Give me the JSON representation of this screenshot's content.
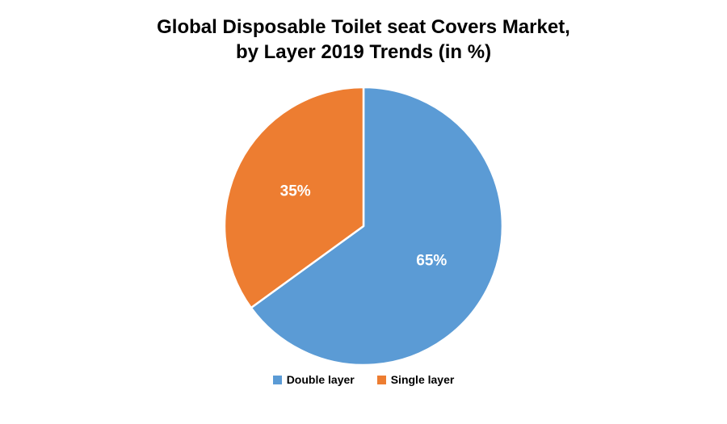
{
  "chart_data": {
    "type": "pie",
    "title": "Global Disposable Toilet seat Covers Market,\nby Layer 2019 Trends (in %)",
    "slices": [
      {
        "name": "Double layer",
        "value": 65,
        "label": "65%",
        "color": "#5B9BD5"
      },
      {
        "name": "Single layer",
        "value": 35,
        "label": "35%",
        "color": "#ED7D31"
      }
    ],
    "start_angle_deg": -90,
    "direction": "clockwise",
    "legend_position": "bottom",
    "data_label_color": "#ffffff",
    "slice_border_color": "#ffffff",
    "background_color": "#ffffff"
  }
}
